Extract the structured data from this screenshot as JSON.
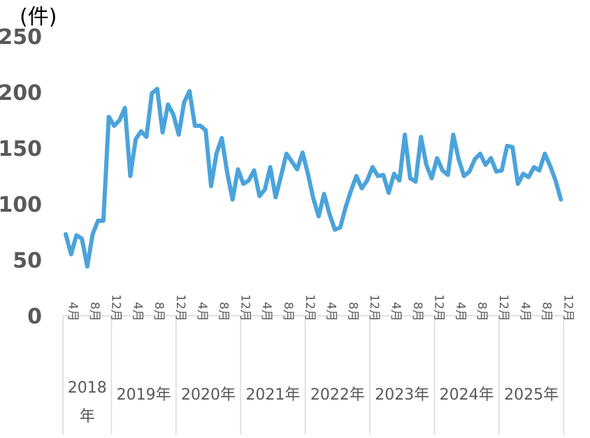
{
  "chart_data": {
    "type": "line",
    "unit_label": "(件)",
    "ylim": [
      0,
      250
    ],
    "y_ticks": [
      "0",
      "50",
      "100",
      "150",
      "200",
      "250"
    ],
    "month_tick_labels": [
      "4月",
      "8月",
      "12月"
    ],
    "years": [
      {
        "label": "2018年",
        "first_index": 0,
        "count": 9
      },
      {
        "label": "2019年",
        "first_index": 9,
        "count": 12
      },
      {
        "label": "2020年",
        "first_index": 21,
        "count": 12
      },
      {
        "label": "2021年",
        "first_index": 33,
        "count": 12
      },
      {
        "label": "2022年",
        "first_index": 45,
        "count": 12
      },
      {
        "label": "2023年",
        "first_index": 57,
        "count": 12
      },
      {
        "label": "2024年",
        "first_index": 69,
        "count": 12
      },
      {
        "label": "2025年",
        "first_index": 81,
        "count": 12
      }
    ],
    "line_color": "#4BA3DB",
    "grid": false,
    "series": [
      {
        "values": [
          73,
          55,
          72,
          69,
          44,
          73,
          85,
          85,
          178,
          170,
          175,
          186,
          125,
          158,
          165,
          160,
          199,
          203,
          164,
          189,
          180,
          162,
          191,
          201,
          170,
          170,
          166,
          116,
          145,
          159,
          128,
          104,
          131,
          118,
          121,
          130,
          107,
          113,
          133,
          106,
          125,
          145,
          138,
          131,
          146,
          127,
          105,
          89,
          109,
          91,
          77,
          79,
          97,
          112,
          125,
          114,
          121,
          133,
          125,
          126,
          110,
          127,
          121,
          162,
          123,
          120,
          160,
          135,
          123,
          141,
          130,
          126,
          162,
          140,
          125,
          129,
          140,
          145,
          135,
          141,
          129,
          130,
          152,
          151,
          118,
          127,
          124,
          133,
          130,
          145,
          134,
          121,
          104
        ]
      }
    ]
  }
}
